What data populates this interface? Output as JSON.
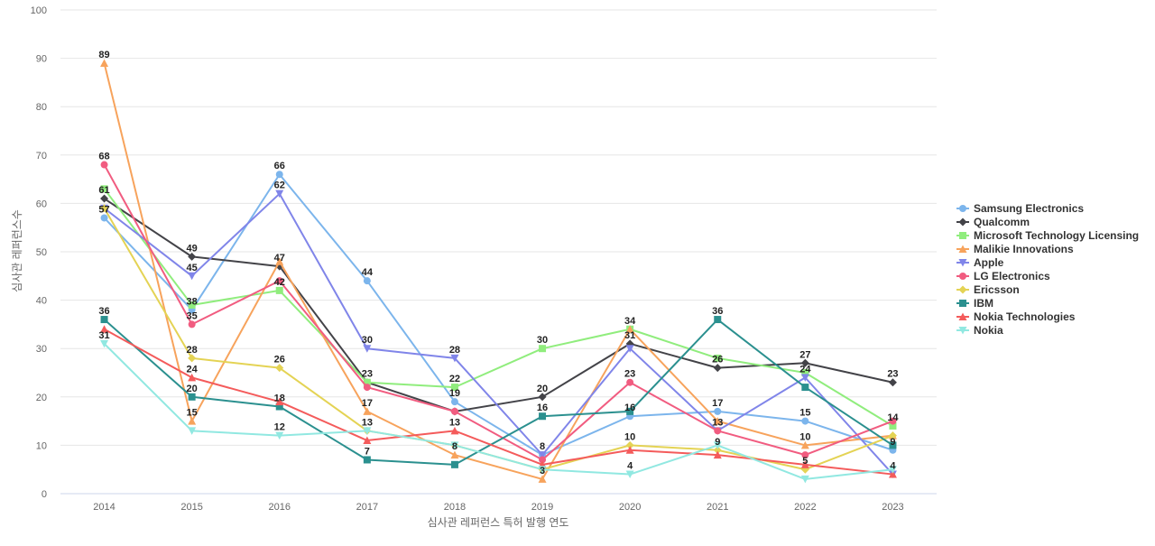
{
  "chart_data": {
    "type": "line",
    "title": "",
    "xlabel": "심사관 레퍼런스 특허 발행 연도",
    "ylabel": "심사관 레퍼런스수",
    "ylim": [
      0,
      100
    ],
    "yticks": [
      0,
      10,
      20,
      30,
      40,
      50,
      60,
      70,
      80,
      90,
      100
    ],
    "grid": true,
    "legend_position": "right",
    "x": [
      "2014",
      "2015",
      "2016",
      "2017",
      "2018",
      "2019",
      "2020",
      "2021",
      "2022",
      "2023"
    ],
    "series": [
      {
        "name": "Samsung Electronics",
        "color": "#7cb5ec",
        "marker": "circle",
        "values": [
          57,
          38,
          66,
          44,
          19,
          8,
          16,
          17,
          15,
          9
        ]
      },
      {
        "name": "Qualcomm",
        "color": "#434348",
        "marker": "diamond",
        "values": [
          61,
          49,
          47,
          23,
          17,
          20,
          31,
          26,
          27,
          23
        ]
      },
      {
        "name": "Microsoft Technology Licensing",
        "color": "#90ed7d",
        "marker": "square",
        "values": [
          63,
          39,
          42,
          23,
          22,
          30,
          34,
          28,
          25,
          14
        ]
      },
      {
        "name": "Malikie Innovations",
        "color": "#f7a35c",
        "marker": "triangle",
        "values": [
          89,
          15,
          48,
          17,
          8,
          3,
          34,
          15,
          10,
          12
        ]
      },
      {
        "name": "Apple",
        "color": "#8085e9",
        "marker": "triangle-down",
        "values": [
          59,
          45,
          62,
          30,
          28,
          8,
          30,
          13,
          24,
          4
        ]
      },
      {
        "name": "LG Electronics",
        "color": "#f15c80",
        "marker": "circle",
        "values": [
          68,
          35,
          44,
          22,
          17,
          7,
          23,
          13,
          8,
          15
        ]
      },
      {
        "name": "Ericsson",
        "color": "#e4d354",
        "marker": "diamond",
        "values": [
          59,
          28,
          26,
          13,
          10,
          5,
          10,
          9,
          5,
          12
        ]
      },
      {
        "name": "IBM",
        "color": "#2b908f",
        "marker": "square",
        "values": [
          36,
          20,
          18,
          7,
          6,
          16,
          17,
          36,
          22,
          10
        ]
      },
      {
        "name": "Nokia Technologies",
        "color": "#f45b5b",
        "marker": "triangle",
        "values": [
          34,
          24,
          19,
          11,
          13,
          6,
          9,
          8,
          6,
          4
        ]
      },
      {
        "name": "Nokia",
        "color": "#91e8e1",
        "marker": "triangle-down",
        "values": [
          31,
          13,
          12,
          13,
          10,
          5,
          4,
          10,
          3,
          5
        ]
      }
    ],
    "data_labels": [
      {
        "x": "2014",
        "value": 89,
        "text": "89"
      },
      {
        "x": "2014",
        "value": 68,
        "text": "68"
      },
      {
        "x": "2014",
        "value": 61,
        "text": "61"
      },
      {
        "x": "2014",
        "value": 57,
        "text": "57"
      },
      {
        "x": "2014",
        "value": 36,
        "text": "36"
      },
      {
        "x": "2014",
        "value": 31,
        "text": "31"
      },
      {
        "x": "2015",
        "value": 49,
        "text": "49"
      },
      {
        "x": "2015",
        "value": 45,
        "text": "45"
      },
      {
        "x": "2015",
        "value": 38,
        "text": "38"
      },
      {
        "x": "2015",
        "value": 35,
        "text": "35"
      },
      {
        "x": "2015",
        "value": 28,
        "text": "28"
      },
      {
        "x": "2015",
        "value": 24,
        "text": "24"
      },
      {
        "x": "2015",
        "value": 20,
        "text": "20"
      },
      {
        "x": "2015",
        "value": 15,
        "text": "15"
      },
      {
        "x": "2016",
        "value": 66,
        "text": "66"
      },
      {
        "x": "2016",
        "value": 62,
        "text": "62"
      },
      {
        "x": "2016",
        "value": 47,
        "text": "47"
      },
      {
        "x": "2016",
        "value": 42,
        "text": "42"
      },
      {
        "x": "2016",
        "value": 26,
        "text": "26"
      },
      {
        "x": "2016",
        "value": 18,
        "text": "18"
      },
      {
        "x": "2016",
        "value": 12,
        "text": "12"
      },
      {
        "x": "2017",
        "value": 44,
        "text": "44"
      },
      {
        "x": "2017",
        "value": 30,
        "text": "30"
      },
      {
        "x": "2017",
        "value": 23,
        "text": "23"
      },
      {
        "x": "2017",
        "value": 17,
        "text": "17"
      },
      {
        "x": "2017",
        "value": 13,
        "text": "13"
      },
      {
        "x": "2017",
        "value": 7,
        "text": "7"
      },
      {
        "x": "2018",
        "value": 28,
        "text": "28"
      },
      {
        "x": "2018",
        "value": 22,
        "text": "22"
      },
      {
        "x": "2018",
        "value": 19,
        "text": "19"
      },
      {
        "x": "2018",
        "value": 13,
        "text": "13"
      },
      {
        "x": "2018",
        "value": 8,
        "text": "8"
      },
      {
        "x": "2019",
        "value": 30,
        "text": "30"
      },
      {
        "x": "2019",
        "value": 20,
        "text": "20"
      },
      {
        "x": "2019",
        "value": 16,
        "text": "16"
      },
      {
        "x": "2019",
        "value": 8,
        "text": "8"
      },
      {
        "x": "2019",
        "value": 3,
        "text": "3"
      },
      {
        "x": "2020",
        "value": 34,
        "text": "34"
      },
      {
        "x": "2020",
        "value": 31,
        "text": "31"
      },
      {
        "x": "2020",
        "value": 23,
        "text": "23"
      },
      {
        "x": "2020",
        "value": 16,
        "text": "16"
      },
      {
        "x": "2020",
        "value": 10,
        "text": "10"
      },
      {
        "x": "2020",
        "value": 4,
        "text": "4"
      },
      {
        "x": "2021",
        "value": 36,
        "text": "36"
      },
      {
        "x": "2021",
        "value": 26,
        "text": "26"
      },
      {
        "x": "2021",
        "value": 17,
        "text": "17"
      },
      {
        "x": "2021",
        "value": 13,
        "text": "13"
      },
      {
        "x": "2021",
        "value": 9,
        "text": "9"
      },
      {
        "x": "2022",
        "value": 27,
        "text": "27"
      },
      {
        "x": "2022",
        "value": 24,
        "text": "24"
      },
      {
        "x": "2022",
        "value": 15,
        "text": "15"
      },
      {
        "x": "2022",
        "value": 10,
        "text": "10"
      },
      {
        "x": "2022",
        "value": 5,
        "text": "5"
      },
      {
        "x": "2023",
        "value": 23,
        "text": "23"
      },
      {
        "x": "2023",
        "value": 14,
        "text": "14"
      },
      {
        "x": "2023",
        "value": 9,
        "text": "9"
      },
      {
        "x": "2023",
        "value": 4,
        "text": "4"
      }
    ]
  }
}
